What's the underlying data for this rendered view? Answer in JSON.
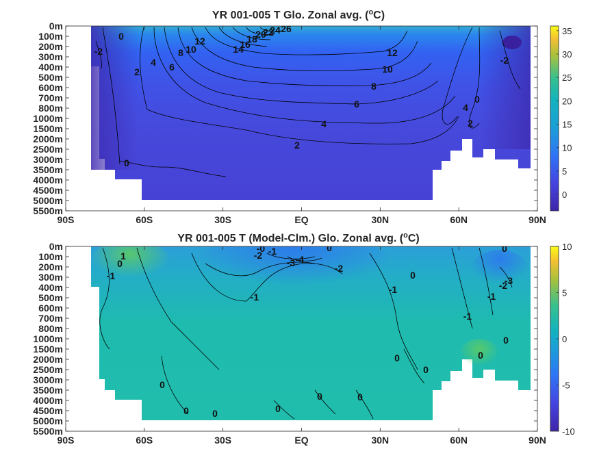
{
  "chart_data": [
    {
      "type": "heatmap",
      "title": "YR 001-005 T Glo. Zonal avg. (",
      "title_sup": "o",
      "title_suffix": "C)",
      "x_ticks": [
        "90S",
        "60S",
        "30S",
        "EQ",
        "30N",
        "60N",
        "90N"
      ],
      "x_tick_values": [
        -90,
        -60,
        -30,
        0,
        30,
        60,
        90
      ],
      "xlim": [
        -90,
        90
      ],
      "y_ticks": [
        "0m",
        "100m",
        "200m",
        "300m",
        "400m",
        "500m",
        "600m",
        "700m",
        "800m",
        "1000m",
        "1500m",
        "2000m",
        "2500m",
        "3000m",
        "3500m",
        "4000m",
        "4500m",
        "5000m",
        "5500m"
      ],
      "colorbar": {
        "ticks": [
          "35",
          "30",
          "25",
          "20",
          "15",
          "10",
          "5",
          "0"
        ],
        "tick_values": [
          35,
          30,
          25,
          20,
          15,
          10,
          5,
          0
        ],
        "range": [
          -3.5,
          36
        ]
      },
      "contour_labels": [
        "0",
        "-2",
        "2",
        "4",
        "6",
        "8",
        "10",
        "12",
        "14",
        "16",
        "18",
        "20",
        "22",
        "24",
        "26",
        "12",
        "10",
        "8",
        "6",
        "4",
        "2",
        "0",
        "-2",
        "4",
        "2",
        "0"
      ],
      "colors": {
        "cold": "#3e26a8",
        "blue": "#4a4ed8",
        "mid": "#2f9bd7",
        "warm": "#3dbd9a",
        "hot": "#f9f93b"
      }
    },
    {
      "type": "heatmap",
      "title": "YR 001-005 T (Model-Clm.) Glo. Zonal avg. (",
      "title_sup": "o",
      "title_suffix": "C)",
      "x_ticks": [
        "90S",
        "60S",
        "30S",
        "EQ",
        "30N",
        "60N",
        "90N"
      ],
      "x_tick_values": [
        -90,
        -60,
        -30,
        0,
        30,
        60,
        90
      ],
      "xlim": [
        -90,
        90
      ],
      "y_ticks": [
        "0m",
        "100m",
        "200m",
        "300m",
        "400m",
        "500m",
        "600m",
        "700m",
        "800m",
        "1000m",
        "1500m",
        "2000m",
        "2500m",
        "3000m",
        "3500m",
        "4000m",
        "4500m",
        "5000m",
        "5500m"
      ],
      "colorbar": {
        "ticks": [
          "10",
          "5",
          "0",
          "-5",
          "-10"
        ],
        "tick_values": [
          10,
          5,
          0,
          -5,
          -10
        ],
        "range": [
          -10,
          10
        ]
      },
      "contour_labels": [
        "1",
        "0",
        "-1",
        "-0",
        "-1",
        "-2",
        "-3",
        "-4",
        "0",
        "-2",
        "-1",
        "0",
        "-1",
        "-1",
        "-1",
        "0",
        "-3",
        "-2",
        "0",
        "0",
        "0",
        "0",
        "0",
        "0",
        "0",
        "0",
        "0",
        "0"
      ],
      "colors": {
        "base": "#1fb8a6",
        "cool": "#2f9bd7",
        "warm": "#5cc863"
      }
    }
  ]
}
